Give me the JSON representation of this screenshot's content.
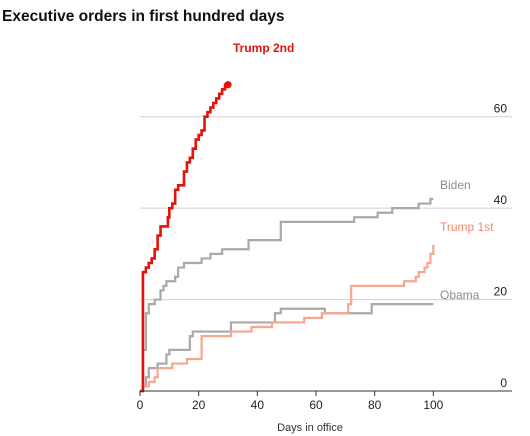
{
  "chart_data": {
    "type": "line",
    "title": "Executive orders in first hundred days",
    "xlabel": "Days in office",
    "ylabel": "",
    "xlim": [
      0,
      120
    ],
    "ylim": [
      0,
      70
    ],
    "x_ticks": [
      0,
      20,
      40,
      60,
      80,
      100
    ],
    "y_ticks": [
      0,
      20,
      40,
      60
    ],
    "gridlines": "horizontal",
    "legend": "direct labels at line ends",
    "series": [
      {
        "name": "Trump 2nd",
        "color": "#e3120b",
        "end_marker": true,
        "points": [
          [
            0,
            0
          ],
          [
            1,
            26
          ],
          [
            2,
            27
          ],
          [
            3,
            28
          ],
          [
            4,
            29
          ],
          [
            5,
            31
          ],
          [
            6,
            34
          ],
          [
            7,
            36
          ],
          [
            9,
            36
          ],
          [
            9.5,
            38
          ],
          [
            10,
            40
          ],
          [
            11,
            41
          ],
          [
            12,
            44
          ],
          [
            13,
            45
          ],
          [
            14,
            45
          ],
          [
            15,
            48
          ],
          [
            16,
            50
          ],
          [
            17,
            51
          ],
          [
            18,
            53
          ],
          [
            19,
            55
          ],
          [
            20,
            56
          ],
          [
            21,
            57
          ],
          [
            22,
            60
          ],
          [
            23,
            61
          ],
          [
            24,
            62
          ],
          [
            25,
            63
          ],
          [
            26,
            64
          ],
          [
            27,
            65
          ],
          [
            28,
            66
          ],
          [
            29,
            67
          ],
          [
            30,
            67
          ]
        ]
      },
      {
        "name": "Biden",
        "color": "#a9a9a9",
        "points": [
          [
            0,
            0
          ],
          [
            1,
            9
          ],
          [
            2,
            17
          ],
          [
            3,
            19
          ],
          [
            5,
            20
          ],
          [
            7,
            22
          ],
          [
            8,
            23
          ],
          [
            9,
            24
          ],
          [
            10,
            24
          ],
          [
            12,
            25
          ],
          [
            13,
            27
          ],
          [
            15,
            28
          ],
          [
            20,
            28
          ],
          [
            21,
            29
          ],
          [
            24,
            30
          ],
          [
            28,
            31
          ],
          [
            36,
            31
          ],
          [
            37,
            33
          ],
          [
            42,
            33
          ],
          [
            48,
            37
          ],
          [
            72,
            37
          ],
          [
            73,
            38
          ],
          [
            80,
            38
          ],
          [
            81,
            39
          ],
          [
            84,
            39
          ],
          [
            86,
            40
          ],
          [
            90,
            40
          ],
          [
            92,
            40
          ],
          [
            95,
            41
          ],
          [
            98,
            41
          ],
          [
            99,
            42
          ],
          [
            100,
            42
          ]
        ]
      },
      {
        "name": "Trump 1st",
        "color": "#f8a68e",
        "points": [
          [
            0,
            0
          ],
          [
            1,
            1
          ],
          [
            3,
            2
          ],
          [
            5,
            3
          ],
          [
            6,
            5
          ],
          [
            10,
            5
          ],
          [
            11,
            6
          ],
          [
            15,
            6
          ],
          [
            16,
            7
          ],
          [
            20,
            7
          ],
          [
            21,
            12
          ],
          [
            30,
            12
          ],
          [
            31,
            13
          ],
          [
            36,
            13
          ],
          [
            38,
            14
          ],
          [
            44,
            14
          ],
          [
            45,
            15
          ],
          [
            55,
            15
          ],
          [
            56,
            16
          ],
          [
            60,
            16
          ],
          [
            62,
            17
          ],
          [
            70,
            17
          ],
          [
            71,
            19
          ],
          [
            72,
            23
          ],
          [
            89,
            23
          ],
          [
            90,
            24
          ],
          [
            93,
            24
          ],
          [
            94,
            25
          ],
          [
            95,
            26
          ],
          [
            97,
            27
          ],
          [
            98,
            28
          ],
          [
            99,
            30
          ],
          [
            100,
            32
          ]
        ]
      },
      {
        "name": "Obama",
        "color": "#a9a9a9",
        "points": [
          [
            0,
            0
          ],
          [
            1,
            1
          ],
          [
            2,
            3
          ],
          [
            3,
            5
          ],
          [
            6,
            6
          ],
          [
            8,
            6
          ],
          [
            9,
            8
          ],
          [
            10,
            9
          ],
          [
            16,
            9
          ],
          [
            17,
            12
          ],
          [
            18,
            13
          ],
          [
            30,
            13
          ],
          [
            31,
            15
          ],
          [
            45,
            15
          ],
          [
            46,
            17
          ],
          [
            48,
            18
          ],
          [
            56,
            18
          ],
          [
            60,
            18
          ],
          [
            62,
            18
          ],
          [
            63,
            17
          ],
          [
            78,
            17
          ],
          [
            79,
            19
          ],
          [
            100,
            19
          ]
        ]
      }
    ]
  }
}
